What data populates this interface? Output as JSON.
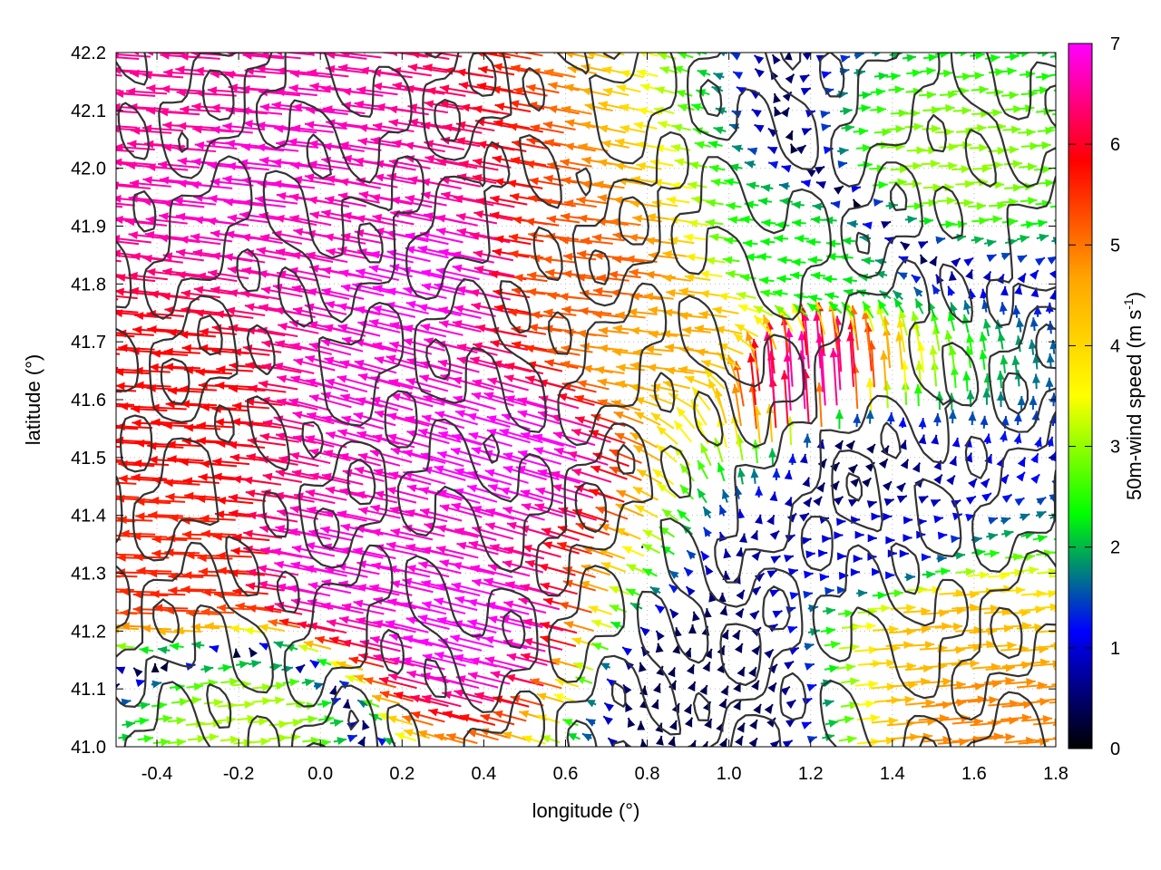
{
  "chart_data": {
    "type": "vector-field",
    "title": "",
    "xlabel": "longitude (°)",
    "ylabel": "latitude (°)",
    "xlim": [
      -0.5,
      1.8
    ],
    "ylim": [
      41.0,
      42.2
    ],
    "x_ticks": [
      -0.4,
      -0.2,
      0.0,
      0.2,
      0.4,
      0.6,
      0.8,
      1.0,
      1.2,
      1.4,
      1.6,
      1.8
    ],
    "x_tick_labels": [
      "-0.4",
      "-0.2",
      "0.0",
      "0.2",
      "0.4",
      "0.6",
      "0.8",
      "1.0",
      "1.2",
      "1.4",
      "1.6",
      "1.8"
    ],
    "y_ticks": [
      41.0,
      41.1,
      41.2,
      41.3,
      41.4,
      41.5,
      41.6,
      41.7,
      41.8,
      41.9,
      42.0,
      42.1,
      42.2
    ],
    "y_tick_labels": [
      "41.0",
      "41.1",
      "41.2",
      "41.3",
      "41.4",
      "41.5",
      "41.6",
      "41.7",
      "41.8",
      "41.9",
      "42.0",
      "42.1",
      "42.2"
    ],
    "grid": true,
    "colorbar": {
      "label_main": "50m-wind speed (m s",
      "label_sup": "-1",
      "label_end": ")",
      "range": [
        0,
        7
      ],
      "ticks": [
        "0",
        "1",
        "2",
        "3",
        "4",
        "5",
        "6",
        "7"
      ],
      "colors": [
        "#000000",
        "#0000ff",
        "#00ff00",
        "#ffff00",
        "#ffa500",
        "#ff0000",
        "#ff00ff"
      ]
    },
    "contour_color": "#333333",
    "vectors": [
      {
        "x": -0.3,
        "y": 42.1,
        "u": -6.5,
        "v": 0.3
      },
      {
        "x": -0.1,
        "y": 42.0,
        "u": -6.8,
        "v": 0.5
      },
      {
        "x": 0.1,
        "y": 41.9,
        "u": -6.6,
        "v": 0.9
      },
      {
        "x": 0.3,
        "y": 41.8,
        "u": -6.9,
        "v": 1.1
      },
      {
        "x": -0.3,
        "y": 41.6,
        "u": -5.8,
        "v": 0.2
      },
      {
        "x": 0.2,
        "y": 41.6,
        "u": -6.7,
        "v": 1.3
      },
      {
        "x": 0.5,
        "y": 41.5,
        "u": -6.9,
        "v": 1.4
      },
      {
        "x": 0.7,
        "y": 41.8,
        "u": -5.2,
        "v": 0.4
      },
      {
        "x": 0.9,
        "y": 41.7,
        "u": -4.6,
        "v": 0.3
      },
      {
        "x": -0.3,
        "y": 41.3,
        "u": -5.6,
        "v": 0.1
      },
      {
        "x": 0.1,
        "y": 41.3,
        "u": -6.8,
        "v": 1.0
      },
      {
        "x": 0.4,
        "y": 41.2,
        "u": -6.9,
        "v": 1.2
      },
      {
        "x": 1.2,
        "y": 41.6,
        "u": -0.6,
        "v": 6.6
      },
      {
        "x": 1.3,
        "y": 41.5,
        "u": 0.3,
        "v": 0.2
      },
      {
        "x": 1.35,
        "y": 41.35,
        "u": 1.0,
        "v": 0.0
      },
      {
        "x": 1.5,
        "y": 41.2,
        "u": 4.4,
        "v": 0.2
      },
      {
        "x": 1.6,
        "y": 41.05,
        "u": 4.9,
        "v": 0.3
      },
      {
        "x": 1.2,
        "y": 41.85,
        "u": -2.3,
        "v": 0.1
      },
      {
        "x": 1.5,
        "y": 42.0,
        "u": 3.0,
        "v": 0.1
      },
      {
        "x": 0.95,
        "y": 41.1,
        "u": 0.2,
        "v": 0.3
      },
      {
        "x": -0.2,
        "y": 41.05,
        "u": 3.1,
        "v": 0.2
      }
    ]
  }
}
